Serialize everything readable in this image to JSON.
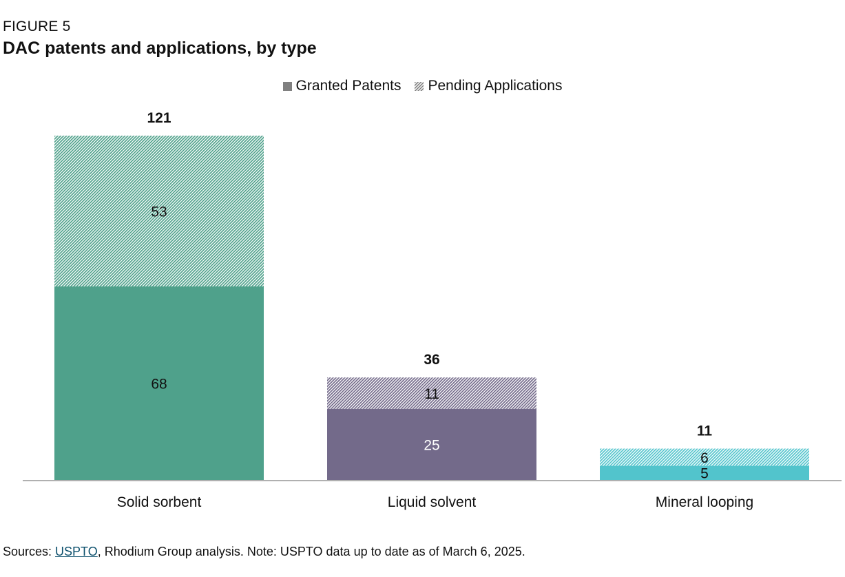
{
  "figure_label": "FIGURE 5",
  "title": "DAC patents and applications, by type",
  "legend": [
    {
      "label": "Granted Patents",
      "swatch": "solid",
      "color": "#808080"
    },
    {
      "label": "Pending Applications",
      "swatch": "hatched",
      "color": "#808080"
    }
  ],
  "source": {
    "prefix": "Sources: ",
    "link_text": "USPTO",
    "suffix": ", Rhodium Group analysis. Note: USPTO data up to date as of March 6, 2025."
  },
  "chart_data": {
    "type": "bar",
    "stacked": true,
    "categories": [
      "Solid sorbent",
      "Liquid solvent",
      "Mineral looping"
    ],
    "series": [
      {
        "name": "Granted Patents",
        "values": [
          68,
          25,
          5
        ]
      },
      {
        "name": "Pending Applications",
        "values": [
          53,
          11,
          6
        ]
      }
    ],
    "totals": [
      121,
      36,
      11
    ],
    "category_colors": [
      "#4fa18b",
      "#736a8a",
      "#52c4cc"
    ],
    "value_label_colors": [
      "#111111",
      "#ffffff",
      "#111111"
    ],
    "ylim": [
      0,
      121
    ],
    "legend_position": "top-center",
    "grid": false
  }
}
